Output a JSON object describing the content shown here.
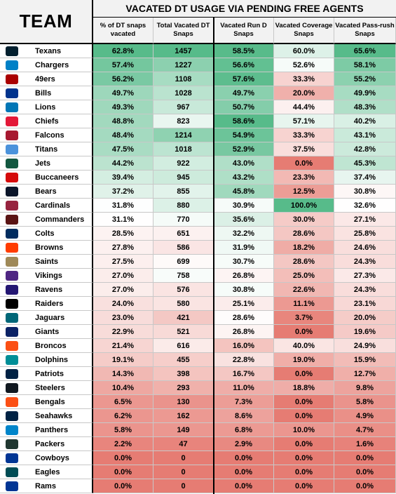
{
  "header": {
    "team_label": "TEAM",
    "title": "VACATED DT USAGE VIA PENDING FREE AGENTS",
    "columns": [
      "% of DT snaps vacated",
      "Total Vacated DT Snaps",
      "Vacated Run D Snaps",
      "Vacated Coverage Snaps",
      "Vacated Pass-rush Snaps"
    ]
  },
  "colors": {
    "high": "#57bb8a",
    "mid": "#ffffff",
    "low": "#e67c73"
  },
  "chart_data": {
    "type": "table",
    "title": "VACATED DT USAGE VIA PENDING FREE AGENTS",
    "columns": [
      "TEAM",
      "% of DT snaps vacated",
      "Total Vacated DT Snaps",
      "Vacated Run D Snaps",
      "Vacated Coverage Snaps",
      "Vacated Pass-rush Snaps"
    ],
    "rows": [
      {
        "team": "Texans",
        "logo_color": "#03202f",
        "pct": "62.8%",
        "total": "1457",
        "run": "58.5%",
        "cov": "60.0%",
        "pr": "65.6%"
      },
      {
        "team": "Chargers",
        "logo_color": "#0080c6",
        "pct": "57.4%",
        "total": "1227",
        "run": "56.6%",
        "cov": "52.6%",
        "pr": "58.1%"
      },
      {
        "team": "49ers",
        "logo_color": "#aa0000",
        "pct": "56.2%",
        "total": "1108",
        "run": "57.6%",
        "cov": "33.3%",
        "pr": "55.2%"
      },
      {
        "team": "Bills",
        "logo_color": "#00338d",
        "pct": "49.7%",
        "total": "1028",
        "run": "49.7%",
        "cov": "20.0%",
        "pr": "49.9%"
      },
      {
        "team": "Lions",
        "logo_color": "#0076b6",
        "pct": "49.3%",
        "total": "967",
        "run": "50.7%",
        "cov": "44.4%",
        "pr": "48.3%"
      },
      {
        "team": "Chiefs",
        "logo_color": "#e31837",
        "pct": "48.8%",
        "total": "823",
        "run": "58.6%",
        "cov": "57.1%",
        "pr": "40.2%"
      },
      {
        "team": "Falcons",
        "logo_color": "#a71930",
        "pct": "48.4%",
        "total": "1214",
        "run": "54.9%",
        "cov": "33.3%",
        "pr": "43.1%"
      },
      {
        "team": "Titans",
        "logo_color": "#4b92db",
        "pct": "47.5%",
        "total": "1018",
        "run": "52.9%",
        "cov": "37.5%",
        "pr": "42.8%"
      },
      {
        "team": "Jets",
        "logo_color": "#125740",
        "pct": "44.2%",
        "total": "922",
        "run": "43.0%",
        "cov": "0.0%",
        "pr": "45.3%"
      },
      {
        "team": "Buccaneers",
        "logo_color": "#d50a0a",
        "pct": "39.4%",
        "total": "945",
        "run": "43.2%",
        "cov": "23.3%",
        "pr": "37.4%"
      },
      {
        "team": "Bears",
        "logo_color": "#0b162a",
        "pct": "37.2%",
        "total": "855",
        "run": "45.8%",
        "cov": "12.5%",
        "pr": "30.8%"
      },
      {
        "team": "Cardinals",
        "logo_color": "#97233f",
        "pct": "31.8%",
        "total": "880",
        "run": "30.9%",
        "cov": "100.0%",
        "pr": "32.6%"
      },
      {
        "team": "Commanders",
        "logo_color": "#5a1414",
        "pct": "31.1%",
        "total": "770",
        "run": "35.6%",
        "cov": "30.0%",
        "pr": "27.1%"
      },
      {
        "team": "Colts",
        "logo_color": "#002c5f",
        "pct": "28.5%",
        "total": "651",
        "run": "32.2%",
        "cov": "28.6%",
        "pr": "25.8%"
      },
      {
        "team": "Browns",
        "logo_color": "#ff3c00",
        "pct": "27.8%",
        "total": "586",
        "run": "31.9%",
        "cov": "18.2%",
        "pr": "24.6%"
      },
      {
        "team": "Saints",
        "logo_color": "#9f8958",
        "pct": "27.5%",
        "total": "699",
        "run": "30.7%",
        "cov": "28.6%",
        "pr": "24.3%"
      },
      {
        "team": "Vikings",
        "logo_color": "#4f2683",
        "pct": "27.0%",
        "total": "758",
        "run": "26.8%",
        "cov": "25.0%",
        "pr": "27.3%"
      },
      {
        "team": "Ravens",
        "logo_color": "#241773",
        "pct": "27.0%",
        "total": "576",
        "run": "30.8%",
        "cov": "22.6%",
        "pr": "24.3%"
      },
      {
        "team": "Raiders",
        "logo_color": "#000000",
        "pct": "24.0%",
        "total": "580",
        "run": "25.1%",
        "cov": "11.1%",
        "pr": "23.1%"
      },
      {
        "team": "Jaguars",
        "logo_color": "#006778",
        "pct": "23.0%",
        "total": "421",
        "run": "28.6%",
        "cov": "3.7%",
        "pr": "20.0%"
      },
      {
        "team": "Giants",
        "logo_color": "#0b2265",
        "pct": "22.9%",
        "total": "521",
        "run": "26.8%",
        "cov": "0.0%",
        "pr": "19.6%"
      },
      {
        "team": "Broncos",
        "logo_color": "#fb4f14",
        "pct": "21.4%",
        "total": "616",
        "run": "16.0%",
        "cov": "40.0%",
        "pr": "24.9%"
      },
      {
        "team": "Dolphins",
        "logo_color": "#008e97",
        "pct": "19.1%",
        "total": "455",
        "run": "22.8%",
        "cov": "19.0%",
        "pr": "15.9%"
      },
      {
        "team": "Patriots",
        "logo_color": "#002244",
        "pct": "14.3%",
        "total": "398",
        "run": "16.7%",
        "cov": "0.0%",
        "pr": "12.7%"
      },
      {
        "team": "Steelers",
        "logo_color": "#101820",
        "pct": "10.4%",
        "total": "293",
        "run": "11.0%",
        "cov": "18.8%",
        "pr": "9.8%"
      },
      {
        "team": "Bengals",
        "logo_color": "#fb4f14",
        "pct": "6.5%",
        "total": "130",
        "run": "7.3%",
        "cov": "0.0%",
        "pr": "5.8%"
      },
      {
        "team": "Seahawks",
        "logo_color": "#002244",
        "pct": "6.2%",
        "total": "162",
        "run": "8.6%",
        "cov": "0.0%",
        "pr": "4.9%"
      },
      {
        "team": "Panthers",
        "logo_color": "#0085ca",
        "pct": "5.8%",
        "total": "149",
        "run": "6.8%",
        "cov": "10.0%",
        "pr": "4.7%"
      },
      {
        "team": "Packers",
        "logo_color": "#203731",
        "pct": "2.2%",
        "total": "47",
        "run": "2.9%",
        "cov": "0.0%",
        "pr": "1.6%"
      },
      {
        "team": "Cowboys",
        "logo_color": "#003594",
        "pct": "0.0%",
        "total": "0",
        "run": "0.0%",
        "cov": "0.0%",
        "pr": "0.0%"
      },
      {
        "team": "Eagles",
        "logo_color": "#004c54",
        "pct": "0.0%",
        "total": "0",
        "run": "0.0%",
        "cov": "0.0%",
        "pr": "0.0%"
      },
      {
        "team": "Rams",
        "logo_color": "#003594",
        "pct": "0.0%",
        "total": "0",
        "run": "0.0%",
        "cov": "0.0%",
        "pr": "0.0%"
      }
    ]
  }
}
